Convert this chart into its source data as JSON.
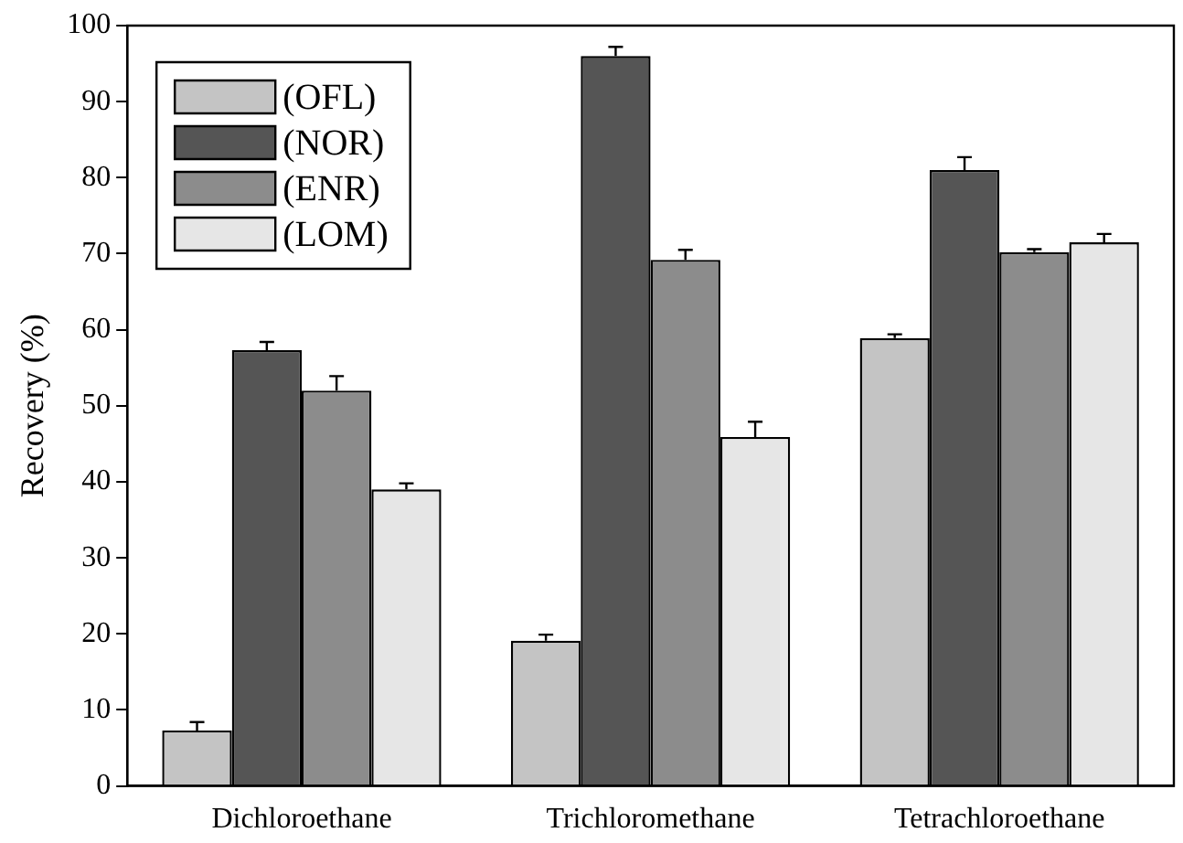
{
  "chart_data": {
    "type": "bar",
    "ylabel": "Recovery (%)",
    "categories": [
      "Dichloroethane",
      "Trichloromethane",
      "Tetrachloroethane"
    ],
    "series": [
      {
        "name": "(OFL)",
        "color": "#c4c4c4",
        "values": [
          7.3,
          19.1,
          58.9
        ],
        "errors": [
          [
            7.3,
            8.4
          ],
          [
            19.1,
            19.9
          ],
          [
            58.9,
            59.4
          ]
        ]
      },
      {
        "name": "(NOR)",
        "color": "#555555",
        "values": [
          57.3,
          96.0,
          81.0
        ],
        "errors": [
          [
            57.3,
            58.4
          ],
          [
            96.0,
            97.2
          ],
          [
            81.0,
            82.7
          ]
        ]
      },
      {
        "name": "(ENR)",
        "color": "#8c8c8c",
        "values": [
          52.0,
          69.2,
          70.2
        ],
        "errors": [
          [
            52.0,
            53.9
          ],
          [
            69.2,
            70.5
          ],
          [
            70.2,
            70.6
          ]
        ]
      },
      {
        "name": "(LOM)",
        "color": "#e6e6e6",
        "values": [
          39.0,
          45.9,
          71.5
        ],
        "errors": [
          [
            39.0,
            39.8
          ],
          [
            45.9,
            47.9
          ],
          [
            71.5,
            72.6
          ]
        ]
      }
    ],
    "ylim": [
      0,
      100
    ],
    "yticks": [
      0,
      10,
      20,
      30,
      40,
      50,
      60,
      70,
      80,
      90,
      100
    ],
    "grid": false,
    "legend": "top left"
  }
}
